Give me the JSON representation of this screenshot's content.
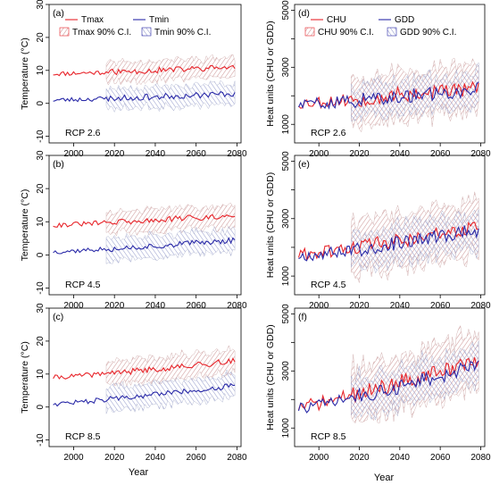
{
  "figure": {
    "xlabel": "Year"
  },
  "colors": {
    "red": "#e8242a",
    "blue": "#2a2aa8",
    "red_band": "#c9a3a3",
    "blue_band": "#a3a9c9"
  },
  "chart_data": [
    {
      "type": "line",
      "panel": "(a)",
      "scenario": "RCP 2.6",
      "ylabel": "Temperature (°C)",
      "xlim": [
        1988,
        2082
      ],
      "ylim": [
        -12,
        30
      ],
      "xticks": [
        2000,
        2020,
        2040,
        2060,
        2080
      ],
      "yticks": [
        -10,
        0,
        10,
        20,
        30
      ],
      "legend": [
        "Tmax",
        "Tmin",
        "Tmax 90% C.I.",
        "Tmin 90% C.I."
      ],
      "series": [
        {
          "name": "Tmax",
          "color": "red",
          "obs_end": 2016,
          "start": 9.0,
          "end": 11.0,
          "band_half_width": 3.0,
          "var": 0.9,
          "seed": 11
        },
        {
          "name": "Tmin",
          "color": "blue",
          "obs_end": 2016,
          "start": 1.0,
          "end": 3.0,
          "band_half_width": 3.0,
          "var": 0.9,
          "seed": 23
        }
      ]
    },
    {
      "type": "line",
      "panel": "(b)",
      "scenario": "RCP 4.5",
      "ylabel": "Temperature (°C)",
      "xlim": [
        1988,
        2082
      ],
      "ylim": [
        -12,
        30
      ],
      "xticks": [
        2000,
        2020,
        2040,
        2060,
        2080
      ],
      "yticks": [
        -10,
        0,
        10,
        20,
        30
      ],
      "series": [
        {
          "name": "Tmax",
          "color": "red",
          "obs_end": 2016,
          "start": 9.0,
          "end": 12.0,
          "band_half_width": 3.2,
          "var": 0.9,
          "seed": 31
        },
        {
          "name": "Tmin",
          "color": "blue",
          "obs_end": 2016,
          "start": 1.0,
          "end": 4.5,
          "band_half_width": 3.2,
          "var": 0.9,
          "seed": 37
        }
      ]
    },
    {
      "type": "line",
      "panel": "(c)",
      "scenario": "RCP 8.5",
      "ylabel": "Temperature (°C)",
      "xlim": [
        1988,
        2082
      ],
      "ylim": [
        -12,
        30
      ],
      "xticks": [
        2000,
        2020,
        2040,
        2060,
        2080
      ],
      "yticks": [
        -10,
        0,
        10,
        20,
        30
      ],
      "series": [
        {
          "name": "Tmax",
          "color": "red",
          "obs_end": 2016,
          "start": 9.0,
          "end": 14.0,
          "band_half_width": 3.5,
          "var": 0.9,
          "seed": 41
        },
        {
          "name": "Tmin",
          "color": "blue",
          "obs_end": 2016,
          "start": 1.0,
          "end": 6.5,
          "band_half_width": 3.5,
          "var": 0.9,
          "seed": 47
        }
      ]
    },
    {
      "type": "line",
      "panel": "(d)",
      "scenario": "RCP 2.6",
      "ylabel": "Heat units (CHU or GDD)",
      "xlim": [
        1988,
        2082
      ],
      "ylim": [
        350,
        5200
      ],
      "xticks": [
        2000,
        2020,
        2040,
        2060,
        2080
      ],
      "yticks": [
        1000,
        2000,
        3000,
        4000,
        5000
      ],
      "ytick_labels": [
        "1000",
        "",
        "3000",
        "",
        "5000"
      ],
      "legend": [
        "CHU",
        "GDD",
        "CHU 90% C.I.",
        "GDD 90% C.I."
      ],
      "series": [
        {
          "name": "CHU",
          "color": "red",
          "obs_end": 2016,
          "start": 1750,
          "end": 2300,
          "band_half_width": 800,
          "var": 280,
          "seed": 53
        },
        {
          "name": "GDD",
          "color": "blue",
          "obs_end": 2016,
          "start": 1700,
          "end": 2250,
          "band_half_width": 550,
          "var": 250,
          "seed": 59
        }
      ]
    },
    {
      "type": "line",
      "panel": "(e)",
      "scenario": "RCP 4.5",
      "ylabel": "Heat units (CHU or GDD)",
      "xlim": [
        1988,
        2082
      ],
      "ylim": [
        350,
        5200
      ],
      "xticks": [
        2000,
        2020,
        2040,
        2060,
        2080
      ],
      "yticks": [
        1000,
        2000,
        3000,
        4000,
        5000
      ],
      "ytick_labels": [
        "1000",
        "",
        "3000",
        "",
        "5000"
      ],
      "series": [
        {
          "name": "CHU",
          "color": "red",
          "obs_end": 2016,
          "start": 1750,
          "end": 2700,
          "band_half_width": 900,
          "var": 280,
          "seed": 61
        },
        {
          "name": "GDD",
          "color": "blue",
          "obs_end": 2016,
          "start": 1700,
          "end": 2600,
          "band_half_width": 600,
          "var": 250,
          "seed": 67
        }
      ]
    },
    {
      "type": "line",
      "panel": "(f)",
      "scenario": "RCP 8.5",
      "ylabel": "Heat units (CHU or GDD)",
      "xlim": [
        1988,
        2082
      ],
      "ylim": [
        350,
        5200
      ],
      "xticks": [
        2000,
        2020,
        2040,
        2060,
        2080
      ],
      "yticks": [
        1000,
        2000,
        3000,
        4000,
        5000
      ],
      "ytick_labels": [
        "1000",
        "",
        "3000",
        "",
        "5000"
      ],
      "series": [
        {
          "name": "CHU",
          "color": "red",
          "obs_end": 2016,
          "start": 1750,
          "end": 3400,
          "band_half_width": 950,
          "var": 300,
          "seed": 71
        },
        {
          "name": "GDD",
          "color": "blue",
          "obs_end": 2016,
          "start": 1700,
          "end": 3200,
          "band_half_width": 650,
          "var": 260,
          "seed": 73
        }
      ]
    }
  ]
}
